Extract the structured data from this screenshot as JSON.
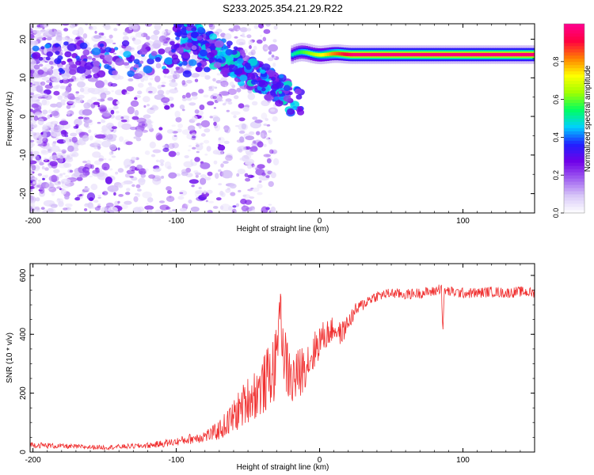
{
  "chart_data": [
    {
      "type": "heatmap",
      "title": "S233.2025.354.21.29.R22",
      "xlabel": "Height of straight line (km)",
      "ylabel": "Frequency (Hz)",
      "xlim": [
        -202,
        150
      ],
      "ylim": [
        -25,
        24
      ],
      "xticks": [
        -200,
        -100,
        0,
        100
      ],
      "yticks": [
        -20,
        -10,
        0,
        10,
        20
      ],
      "colorbar": {
        "label": "Normalized spectral amplitude",
        "range": [
          0.0,
          1.0
        ],
        "ticks": [
          0.0,
          0.2,
          0.4,
          0.6,
          0.8
        ],
        "colors": [
          "#ffffff",
          "#d8c8f8",
          "#a060f0",
          "#7000e8",
          "#2020ff",
          "#00d0ff",
          "#00ff60",
          "#a0ff00",
          "#ffff00",
          "#ff8000",
          "#ff0040",
          "#ff0090"
        ]
      },
      "features": {
        "stable_tone": {
          "x_range": [
            -20,
            150
          ],
          "frequency": 16,
          "peak_amplitude": 0.95
        },
        "descending_band": {
          "x_range": [
            -100,
            -20
          ],
          "frequency_range": [
            22,
            4
          ],
          "peak_amplitude": 0.4
        },
        "scatter_region": {
          "x_range": [
            -202,
            -30
          ],
          "frequency_range": [
            -25,
            24
          ],
          "amplitude_range": [
            0.05,
            0.3
          ]
        }
      }
    },
    {
      "type": "line",
      "title": "",
      "xlabel": "Height of straight line (km)",
      "ylabel": "SNR (10 * v/v)",
      "xlim": [
        -202,
        150
      ],
      "ylim": [
        0,
        640
      ],
      "xticks": [
        -200,
        -100,
        0,
        100
      ],
      "yticks": [
        0,
        200,
        400,
        600
      ],
      "series": [
        {
          "name": "SNR",
          "color": "#f03030",
          "x": [
            -202,
            -190,
            -180,
            -170,
            -160,
            -150,
            -140,
            -130,
            -120,
            -110,
            -100,
            -90,
            -80,
            -75,
            -70,
            -65,
            -60,
            -55,
            -50,
            -45,
            -40,
            -35,
            -30,
            -28,
            -25,
            -20,
            -15,
            -10,
            -5,
            0,
            5,
            10,
            15,
            20,
            25,
            30,
            35,
            40,
            45,
            50,
            60,
            70,
            80,
            85,
            86,
            87,
            90,
            100,
            110,
            120,
            130,
            140,
            150
          ],
          "values": [
            25,
            22,
            20,
            18,
            17,
            16,
            18,
            20,
            22,
            28,
            35,
            45,
            55,
            62,
            75,
            95,
            120,
            150,
            180,
            200,
            220,
            260,
            300,
            520,
            330,
            240,
            260,
            300,
            330,
            380,
            400,
            420,
            400,
            440,
            480,
            500,
            520,
            530,
            535,
            540,
            535,
            540,
            545,
            560,
            400,
            550,
            545,
            540,
            540,
            545,
            540,
            545,
            540
          ],
          "noise_amplitude": [
            10,
            10,
            9,
            8,
            8,
            8,
            8,
            9,
            10,
            12,
            14,
            18,
            22,
            26,
            35,
            45,
            60,
            70,
            80,
            90,
            100,
            110,
            120,
            60,
            110,
            100,
            90,
            80,
            70,
            60,
            50,
            40,
            40,
            30,
            25,
            22,
            20,
            18,
            18,
            18,
            18,
            18,
            18,
            20,
            10,
            18,
            18,
            18,
            18,
            18,
            18,
            18,
            18
          ]
        }
      ]
    }
  ]
}
